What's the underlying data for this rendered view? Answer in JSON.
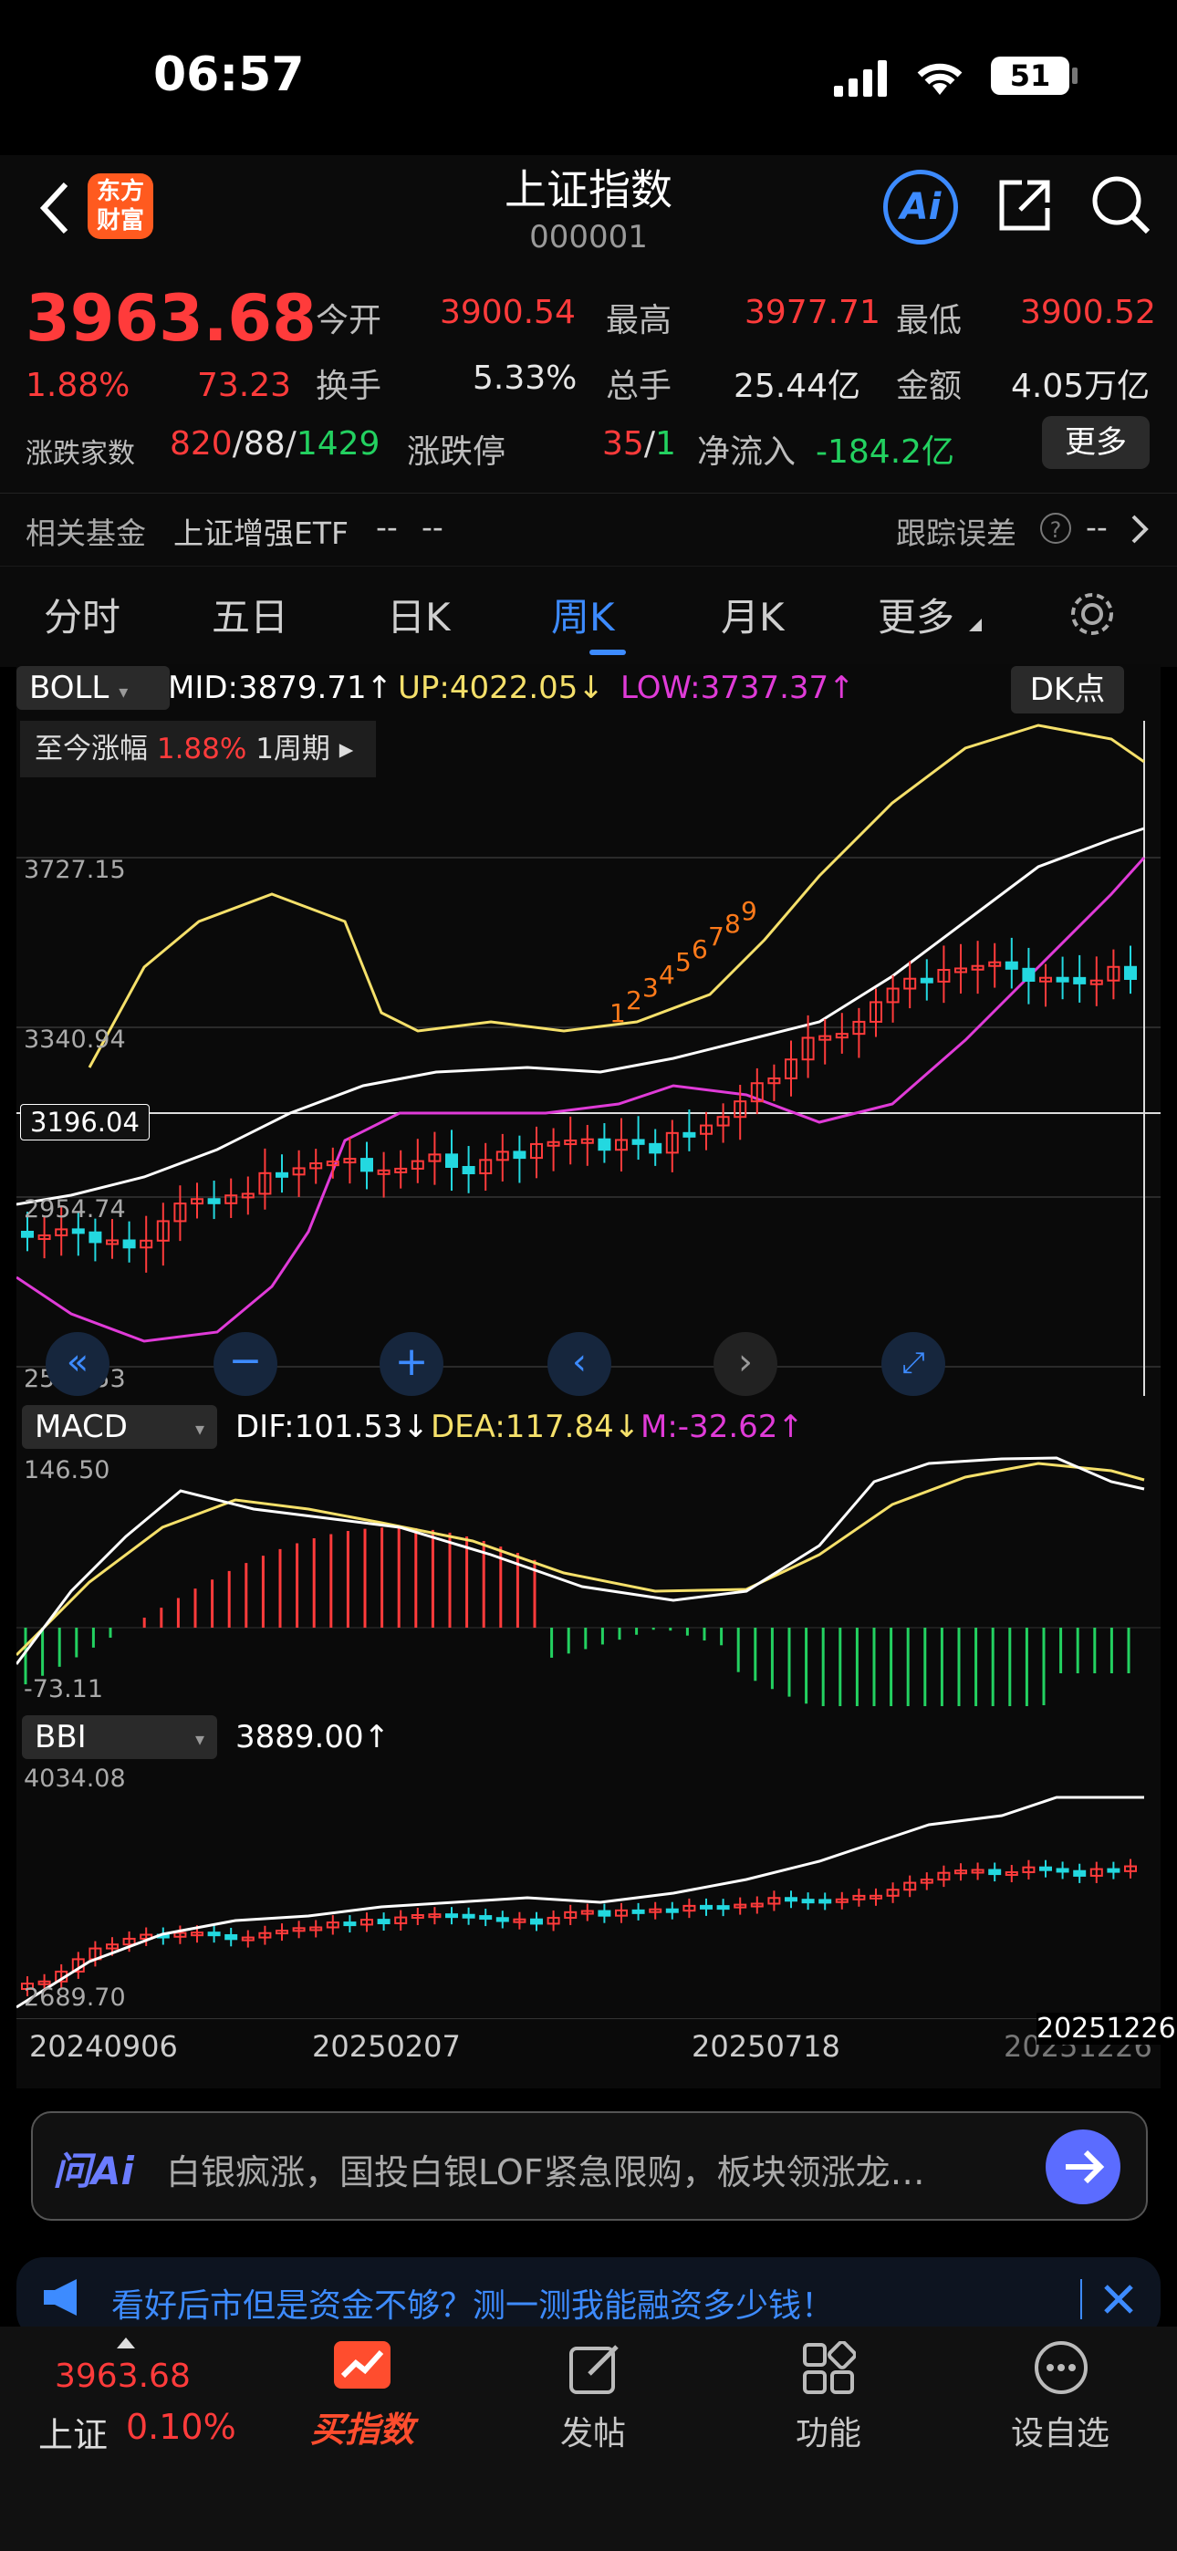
{
  "status_bar": {
    "time": "06:57",
    "battery": "51"
  },
  "nav": {
    "title": "上证指数",
    "code": "000001",
    "logo_line1": "东方",
    "logo_line2": "财富",
    "ai_label": "Ai"
  },
  "quote": {
    "price": "3963.68",
    "pct": "1.88%",
    "change": "73.23",
    "open_label": "今开",
    "open": "3900.54",
    "high_label": "最高",
    "high": "3977.71",
    "low_label": "最低",
    "low": "3900.52",
    "turnover_label": "换手",
    "turnover": "5.33%",
    "volume_label": "总手",
    "volume": "25.44亿",
    "amount_label": "金额",
    "amount": "4.05万亿",
    "breadth_label": "涨跌家数",
    "up_count": "820",
    "flat_count": "88",
    "down_count": "1429",
    "limit_label": "涨跌停",
    "limit_up": "35",
    "limit_down": "1",
    "netflow_label": "净流入",
    "netflow": "-184.2亿",
    "more_btn": "更多"
  },
  "fund": {
    "label": "相关基金",
    "name": "上证增强ETF",
    "v1": "--",
    "v2": "--",
    "track_label": "跟踪误差",
    "track_val": "--"
  },
  "tabs": [
    "分时",
    "五日",
    "日K",
    "周K",
    "月K",
    "更多"
  ],
  "active_tab": 3,
  "boll": {
    "name": "BOLL",
    "mid": "MID:3879.71",
    "up": "UP:4022.05",
    "low": "LOW:3737.37",
    "dk": "DK点",
    "since_label": "至今涨幅",
    "since_pct": "1.88%",
    "period": "1周期"
  },
  "price_axis": {
    "l1": "3727.15",
    "l2": "3340.94",
    "l3": "2954.74",
    "l4": "2568.53",
    "cursor": "3196.04"
  },
  "macd": {
    "name": "MACD",
    "dif": "DIF:101.53",
    "dea": "DEA:117.84",
    "m": "M:-32.62",
    "top": "146.50",
    "bottom": "-73.11"
  },
  "bbi": {
    "name": "BBI",
    "value": "3889.00",
    "top": "4034.08",
    "bottom": "2689.70"
  },
  "dates": {
    "d1": "20240906",
    "d2": "20250207",
    "d3": "20250718",
    "d4": "20251226",
    "d4b": "20251226"
  },
  "ai_bar": {
    "label": "问Ai",
    "text": "白银疯涨，国投白银LOF紧急限购，板块领涨龙…"
  },
  "banner": {
    "text": "看好后市但是资金不够？测一测我能融资多少钱！"
  },
  "tabbar": {
    "idx_price": "3963.68",
    "idx_name": "上证",
    "idx_pct": "0.10%",
    "buy_label": "买指数",
    "post_label": "发帖",
    "func_label": "功能",
    "watch_label": "设自选"
  },
  "colors": {
    "up": "#ff3b3b",
    "down": "#23d8e0",
    "boll_up": "#f5e06a",
    "boll_low": "#e03bd8",
    "accent": "#3d8bff"
  },
  "chart_data": {
    "type": "candlestick",
    "period": "weekly",
    "x_labels": [
      "20240906",
      "20250207",
      "20250718",
      "20251226"
    ],
    "ylim": [
      2568.53,
      4034.08
    ],
    "price_ticks": [
      3727.15,
      3340.94,
      2954.74,
      2568.53
    ],
    "nine_turn_top": [
      1,
      2,
      3,
      4,
      5,
      6,
      7,
      8,
      9
    ],
    "series": [
      {
        "name": "BOLL MID",
        "last": 3879.71
      },
      {
        "name": "BOLL UP",
        "last": 4022.05
      },
      {
        "name": "BOLL LOW",
        "last": 3737.37
      },
      {
        "name": "DIF",
        "last": 101.53
      },
      {
        "name": "DEA",
        "last": 117.84
      },
      {
        "name": "M",
        "last": -32.62
      },
      {
        "name": "BBI",
        "last": 3889.0
      }
    ]
  }
}
